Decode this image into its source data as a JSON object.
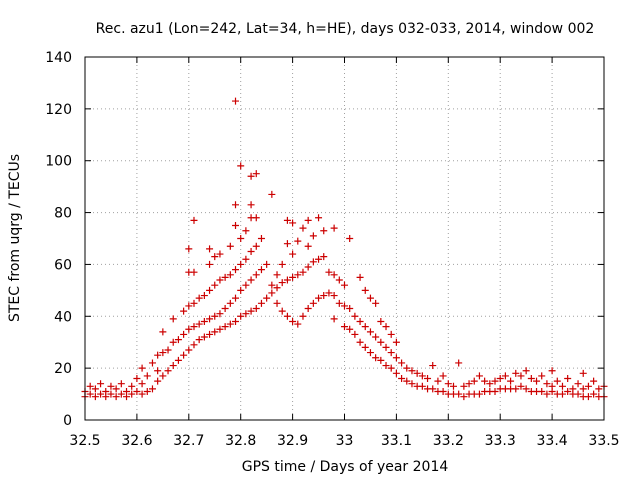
{
  "chart_data": {
    "type": "scatter",
    "title": "Rec. azu1 (Lon=242, Lat=34, h=HE), days 032-033, 2014, window 002",
    "xlabel": "GPS time / Days of year 2014",
    "ylabel": "STEC from uqrg / TECUs",
    "xlim": [
      32.5,
      33.5
    ],
    "ylim": [
      0,
      140
    ],
    "xticks": [
      32.5,
      32.6,
      32.7,
      32.8,
      32.9,
      33.0,
      33.1,
      33.2,
      33.3,
      33.4,
      33.5
    ],
    "xtick_labels": [
      "32.5",
      "32.6",
      "32.7",
      "32.8",
      "32.9",
      "33",
      "33.1",
      "33.2",
      "33.3",
      "33.4",
      "33.5"
    ],
    "yticks": [
      0,
      20,
      40,
      60,
      80,
      100,
      120,
      140
    ],
    "ytick_labels": [
      "0",
      "20",
      "40",
      "60",
      "80",
      "100",
      "120",
      "140"
    ],
    "grid": true,
    "marker": "+",
    "color": "#cc0000",
    "series": [
      {
        "name": "STEC",
        "points": [
          [
            32.5,
            9
          ],
          [
            32.5,
            11
          ],
          [
            32.51,
            10
          ],
          [
            32.51,
            13
          ],
          [
            32.52,
            9
          ],
          [
            32.52,
            12
          ],
          [
            32.53,
            10
          ],
          [
            32.53,
            14
          ],
          [
            32.54,
            9
          ],
          [
            32.54,
            11
          ],
          [
            32.55,
            10
          ],
          [
            32.55,
            13
          ],
          [
            32.56,
            9
          ],
          [
            32.56,
            12
          ],
          [
            32.57,
            10
          ],
          [
            32.57,
            14
          ],
          [
            32.58,
            9
          ],
          [
            32.58,
            11
          ],
          [
            32.59,
            10
          ],
          [
            32.59,
            13
          ],
          [
            32.6,
            11
          ],
          [
            32.6,
            16
          ],
          [
            32.61,
            10
          ],
          [
            32.61,
            14
          ],
          [
            32.61,
            20
          ],
          [
            32.62,
            11
          ],
          [
            32.62,
            17
          ],
          [
            32.63,
            12
          ],
          [
            32.63,
            22
          ],
          [
            32.64,
            15
          ],
          [
            32.64,
            19
          ],
          [
            32.64,
            25
          ],
          [
            32.65,
            17
          ],
          [
            32.65,
            26
          ],
          [
            32.65,
            34
          ],
          [
            32.66,
            19
          ],
          [
            32.66,
            27
          ],
          [
            32.67,
            21
          ],
          [
            32.67,
            30
          ],
          [
            32.67,
            39
          ],
          [
            32.68,
            23
          ],
          [
            32.68,
            31
          ],
          [
            32.69,
            25
          ],
          [
            32.69,
            33
          ],
          [
            32.69,
            42
          ],
          [
            32.7,
            27
          ],
          [
            32.7,
            35
          ],
          [
            32.7,
            44
          ],
          [
            32.7,
            57
          ],
          [
            32.7,
            66
          ],
          [
            32.71,
            29
          ],
          [
            32.71,
            36
          ],
          [
            32.71,
            45
          ],
          [
            32.71,
            57
          ],
          [
            32.71,
            77
          ],
          [
            32.72,
            31
          ],
          [
            32.72,
            37
          ],
          [
            32.72,
            47
          ],
          [
            32.73,
            32
          ],
          [
            32.73,
            38
          ],
          [
            32.73,
            48
          ],
          [
            32.74,
            33
          ],
          [
            32.74,
            39
          ],
          [
            32.74,
            50
          ],
          [
            32.74,
            60
          ],
          [
            32.74,
            66
          ],
          [
            32.75,
            34
          ],
          [
            32.75,
            40
          ],
          [
            32.75,
            52
          ],
          [
            32.75,
            63
          ],
          [
            32.76,
            35
          ],
          [
            32.76,
            41
          ],
          [
            32.76,
            54
          ],
          [
            32.76,
            64
          ],
          [
            32.77,
            36
          ],
          [
            32.77,
            43
          ],
          [
            32.77,
            55
          ],
          [
            32.78,
            37
          ],
          [
            32.78,
            45
          ],
          [
            32.78,
            56
          ],
          [
            32.78,
            67
          ],
          [
            32.79,
            38
          ],
          [
            32.79,
            47
          ],
          [
            32.79,
            58
          ],
          [
            32.79,
            75
          ],
          [
            32.79,
            83
          ],
          [
            32.79,
            123
          ],
          [
            32.8,
            40
          ],
          [
            32.8,
            50
          ],
          [
            32.8,
            60
          ],
          [
            32.8,
            70
          ],
          [
            32.8,
            98
          ],
          [
            32.81,
            41
          ],
          [
            32.81,
            52
          ],
          [
            32.81,
            62
          ],
          [
            32.81,
            73
          ],
          [
            32.82,
            42
          ],
          [
            32.82,
            54
          ],
          [
            32.82,
            65
          ],
          [
            32.82,
            78
          ],
          [
            32.82,
            83
          ],
          [
            32.82,
            94
          ],
          [
            32.83,
            43
          ],
          [
            32.83,
            56
          ],
          [
            32.83,
            67
          ],
          [
            32.83,
            78
          ],
          [
            32.83,
            95
          ],
          [
            32.84,
            45
          ],
          [
            32.84,
            58
          ],
          [
            32.84,
            70
          ],
          [
            32.85,
            47
          ],
          [
            32.85,
            60
          ],
          [
            32.86,
            49
          ],
          [
            32.86,
            52
          ],
          [
            32.86,
            87
          ],
          [
            32.87,
            45
          ],
          [
            32.87,
            51
          ],
          [
            32.87,
            56
          ],
          [
            32.88,
            42
          ],
          [
            32.88,
            53
          ],
          [
            32.88,
            60
          ],
          [
            32.89,
            40
          ],
          [
            32.89,
            54
          ],
          [
            32.89,
            68
          ],
          [
            32.89,
            77
          ],
          [
            32.9,
            38
          ],
          [
            32.9,
            55
          ],
          [
            32.9,
            64
          ],
          [
            32.9,
            76
          ],
          [
            32.91,
            37
          ],
          [
            32.91,
            56
          ],
          [
            32.91,
            69
          ],
          [
            32.92,
            40
          ],
          [
            32.92,
            57
          ],
          [
            32.92,
            74
          ],
          [
            32.93,
            43
          ],
          [
            32.93,
            59
          ],
          [
            32.93,
            67
          ],
          [
            32.93,
            77
          ],
          [
            32.94,
            45
          ],
          [
            32.94,
            61
          ],
          [
            32.94,
            71
          ],
          [
            32.95,
            47
          ],
          [
            32.95,
            62
          ],
          [
            32.95,
            78
          ],
          [
            32.96,
            48
          ],
          [
            32.96,
            63
          ],
          [
            32.96,
            73
          ],
          [
            32.97,
            49
          ],
          [
            32.97,
            57
          ],
          [
            32.98,
            39
          ],
          [
            32.98,
            48
          ],
          [
            32.98,
            56
          ],
          [
            32.98,
            74
          ],
          [
            32.99,
            45
          ],
          [
            32.99,
            54
          ],
          [
            33.0,
            36
          ],
          [
            33.0,
            44
          ],
          [
            33.0,
            52
          ],
          [
            33.01,
            35
          ],
          [
            33.01,
            43
          ],
          [
            33.01,
            70
          ],
          [
            33.02,
            33
          ],
          [
            33.02,
            40
          ],
          [
            33.03,
            30
          ],
          [
            33.03,
            38
          ],
          [
            33.03,
            55
          ],
          [
            33.04,
            28
          ],
          [
            33.04,
            36
          ],
          [
            33.04,
            50
          ],
          [
            33.05,
            26
          ],
          [
            33.05,
            34
          ],
          [
            33.05,
            47
          ],
          [
            33.06,
            24
          ],
          [
            33.06,
            32
          ],
          [
            33.06,
            45
          ],
          [
            33.07,
            23
          ],
          [
            33.07,
            30
          ],
          [
            33.07,
            38
          ],
          [
            33.08,
            21
          ],
          [
            33.08,
            28
          ],
          [
            33.08,
            36
          ],
          [
            33.09,
            20
          ],
          [
            33.09,
            26
          ],
          [
            33.09,
            33
          ],
          [
            33.1,
            18
          ],
          [
            33.1,
            24
          ],
          [
            33.1,
            30
          ],
          [
            33.11,
            16
          ],
          [
            33.11,
            22
          ],
          [
            33.12,
            15
          ],
          [
            33.12,
            20
          ],
          [
            33.13,
            14
          ],
          [
            33.13,
            19
          ],
          [
            33.14,
            13
          ],
          [
            33.14,
            18
          ],
          [
            33.15,
            13
          ],
          [
            33.15,
            17
          ],
          [
            33.16,
            12
          ],
          [
            33.16,
            16
          ],
          [
            33.17,
            12
          ],
          [
            33.17,
            21
          ],
          [
            33.18,
            11
          ],
          [
            33.18,
            15
          ],
          [
            33.19,
            11
          ],
          [
            33.19,
            17
          ],
          [
            33.2,
            10
          ],
          [
            33.2,
            14
          ],
          [
            33.21,
            10
          ],
          [
            33.21,
            13
          ],
          [
            33.22,
            10
          ],
          [
            33.22,
            22
          ],
          [
            33.23,
            9
          ],
          [
            33.23,
            13
          ],
          [
            33.24,
            10
          ],
          [
            33.24,
            14
          ],
          [
            33.25,
            10
          ],
          [
            33.25,
            15
          ],
          [
            33.26,
            10
          ],
          [
            33.26,
            17
          ],
          [
            33.27,
            11
          ],
          [
            33.27,
            15
          ],
          [
            33.28,
            11
          ],
          [
            33.28,
            14
          ],
          [
            33.29,
            11
          ],
          [
            33.29,
            15
          ],
          [
            33.3,
            12
          ],
          [
            33.3,
            16
          ],
          [
            33.31,
            12
          ],
          [
            33.31,
            17
          ],
          [
            33.32,
            12
          ],
          [
            33.32,
            15
          ],
          [
            33.33,
            12
          ],
          [
            33.33,
            18
          ],
          [
            33.34,
            13
          ],
          [
            33.34,
            17
          ],
          [
            33.35,
            12
          ],
          [
            33.35,
            19
          ],
          [
            33.36,
            11
          ],
          [
            33.36,
            16
          ],
          [
            33.37,
            11
          ],
          [
            33.37,
            15
          ],
          [
            33.38,
            11
          ],
          [
            33.38,
            17
          ],
          [
            33.39,
            10
          ],
          [
            33.39,
            14
          ],
          [
            33.4,
            11
          ],
          [
            33.4,
            13
          ],
          [
            33.4,
            19
          ],
          [
            33.41,
            10
          ],
          [
            33.41,
            15
          ],
          [
            33.42,
            10
          ],
          [
            33.42,
            13
          ],
          [
            33.43,
            11
          ],
          [
            33.43,
            16
          ],
          [
            33.44,
            10
          ],
          [
            33.44,
            12
          ],
          [
            33.45,
            10
          ],
          [
            33.45,
            14
          ],
          [
            33.46,
            9
          ],
          [
            33.46,
            12
          ],
          [
            33.46,
            18
          ],
          [
            33.47,
            9
          ],
          [
            33.47,
            13
          ],
          [
            33.48,
            10
          ],
          [
            33.48,
            15
          ],
          [
            33.49,
            9
          ],
          [
            33.49,
            12
          ],
          [
            33.5,
            9
          ],
          [
            33.5,
            13
          ]
        ]
      }
    ]
  }
}
